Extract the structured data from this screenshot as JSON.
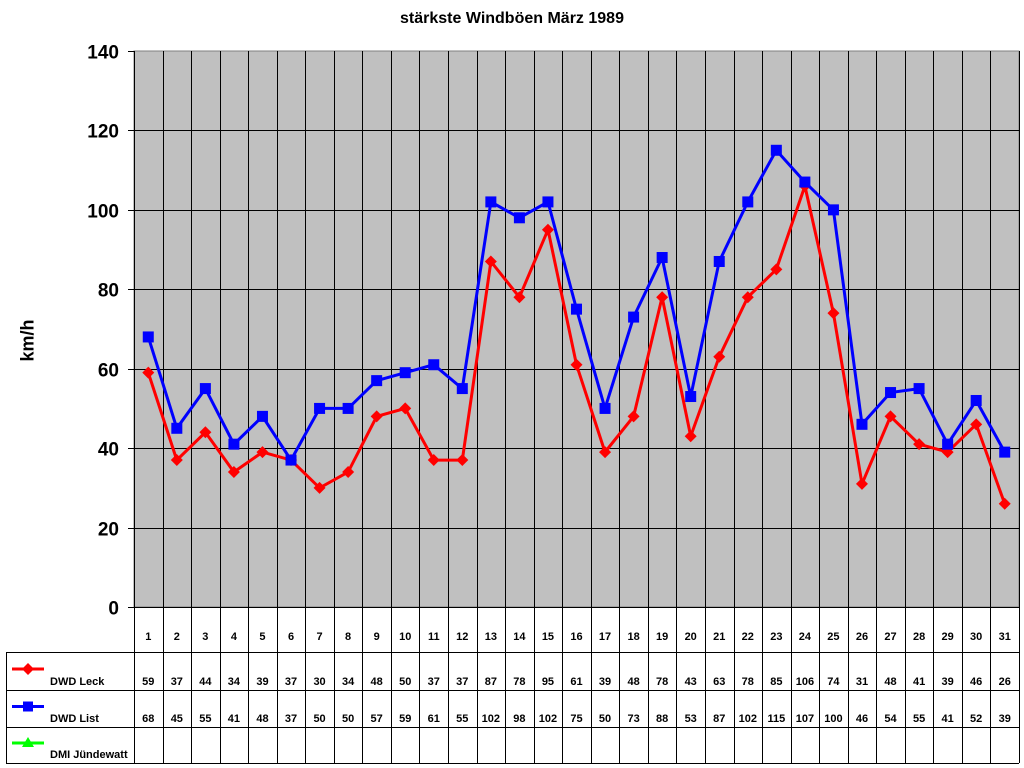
{
  "chart_data": {
    "type": "line",
    "title": "stärkste Windböen März 1989",
    "xlabel": "",
    "ylabel": "km/h",
    "ylim": [
      0,
      140
    ],
    "yticks": [
      0,
      20,
      40,
      60,
      80,
      100,
      120,
      140
    ],
    "grid": true,
    "legend_position": "data-table-left",
    "categories": [
      "1",
      "2",
      "3",
      "4",
      "5",
      "6",
      "7",
      "8",
      "9",
      "10",
      "11",
      "12",
      "13",
      "14",
      "15",
      "16",
      "17",
      "18",
      "19",
      "20",
      "21",
      "22",
      "23",
      "24",
      "25",
      "26",
      "27",
      "28",
      "29",
      "30",
      "31"
    ],
    "series": [
      {
        "name": "DWD Leck",
        "color": "#ff0000",
        "marker": "diamond",
        "values": [
          59,
          37,
          44,
          34,
          39,
          37,
          30,
          34,
          48,
          50,
          37,
          37,
          87,
          78,
          95,
          61,
          39,
          48,
          78,
          43,
          63,
          78,
          85,
          106,
          74,
          31,
          48,
          41,
          39,
          46,
          26
        ]
      },
      {
        "name": "DWD List",
        "color": "#0000ff",
        "marker": "square",
        "values": [
          68,
          45,
          55,
          41,
          48,
          37,
          50,
          50,
          57,
          59,
          61,
          55,
          102,
          98,
          102,
          75,
          50,
          73,
          88,
          53,
          87,
          102,
          115,
          107,
          100,
          46,
          54,
          55,
          41,
          52,
          39
        ]
      },
      {
        "name": "DMI Jündewatt",
        "color": "#00ff00",
        "marker": "triangle",
        "values": []
      }
    ],
    "plot_background": "#c0c0c0"
  }
}
